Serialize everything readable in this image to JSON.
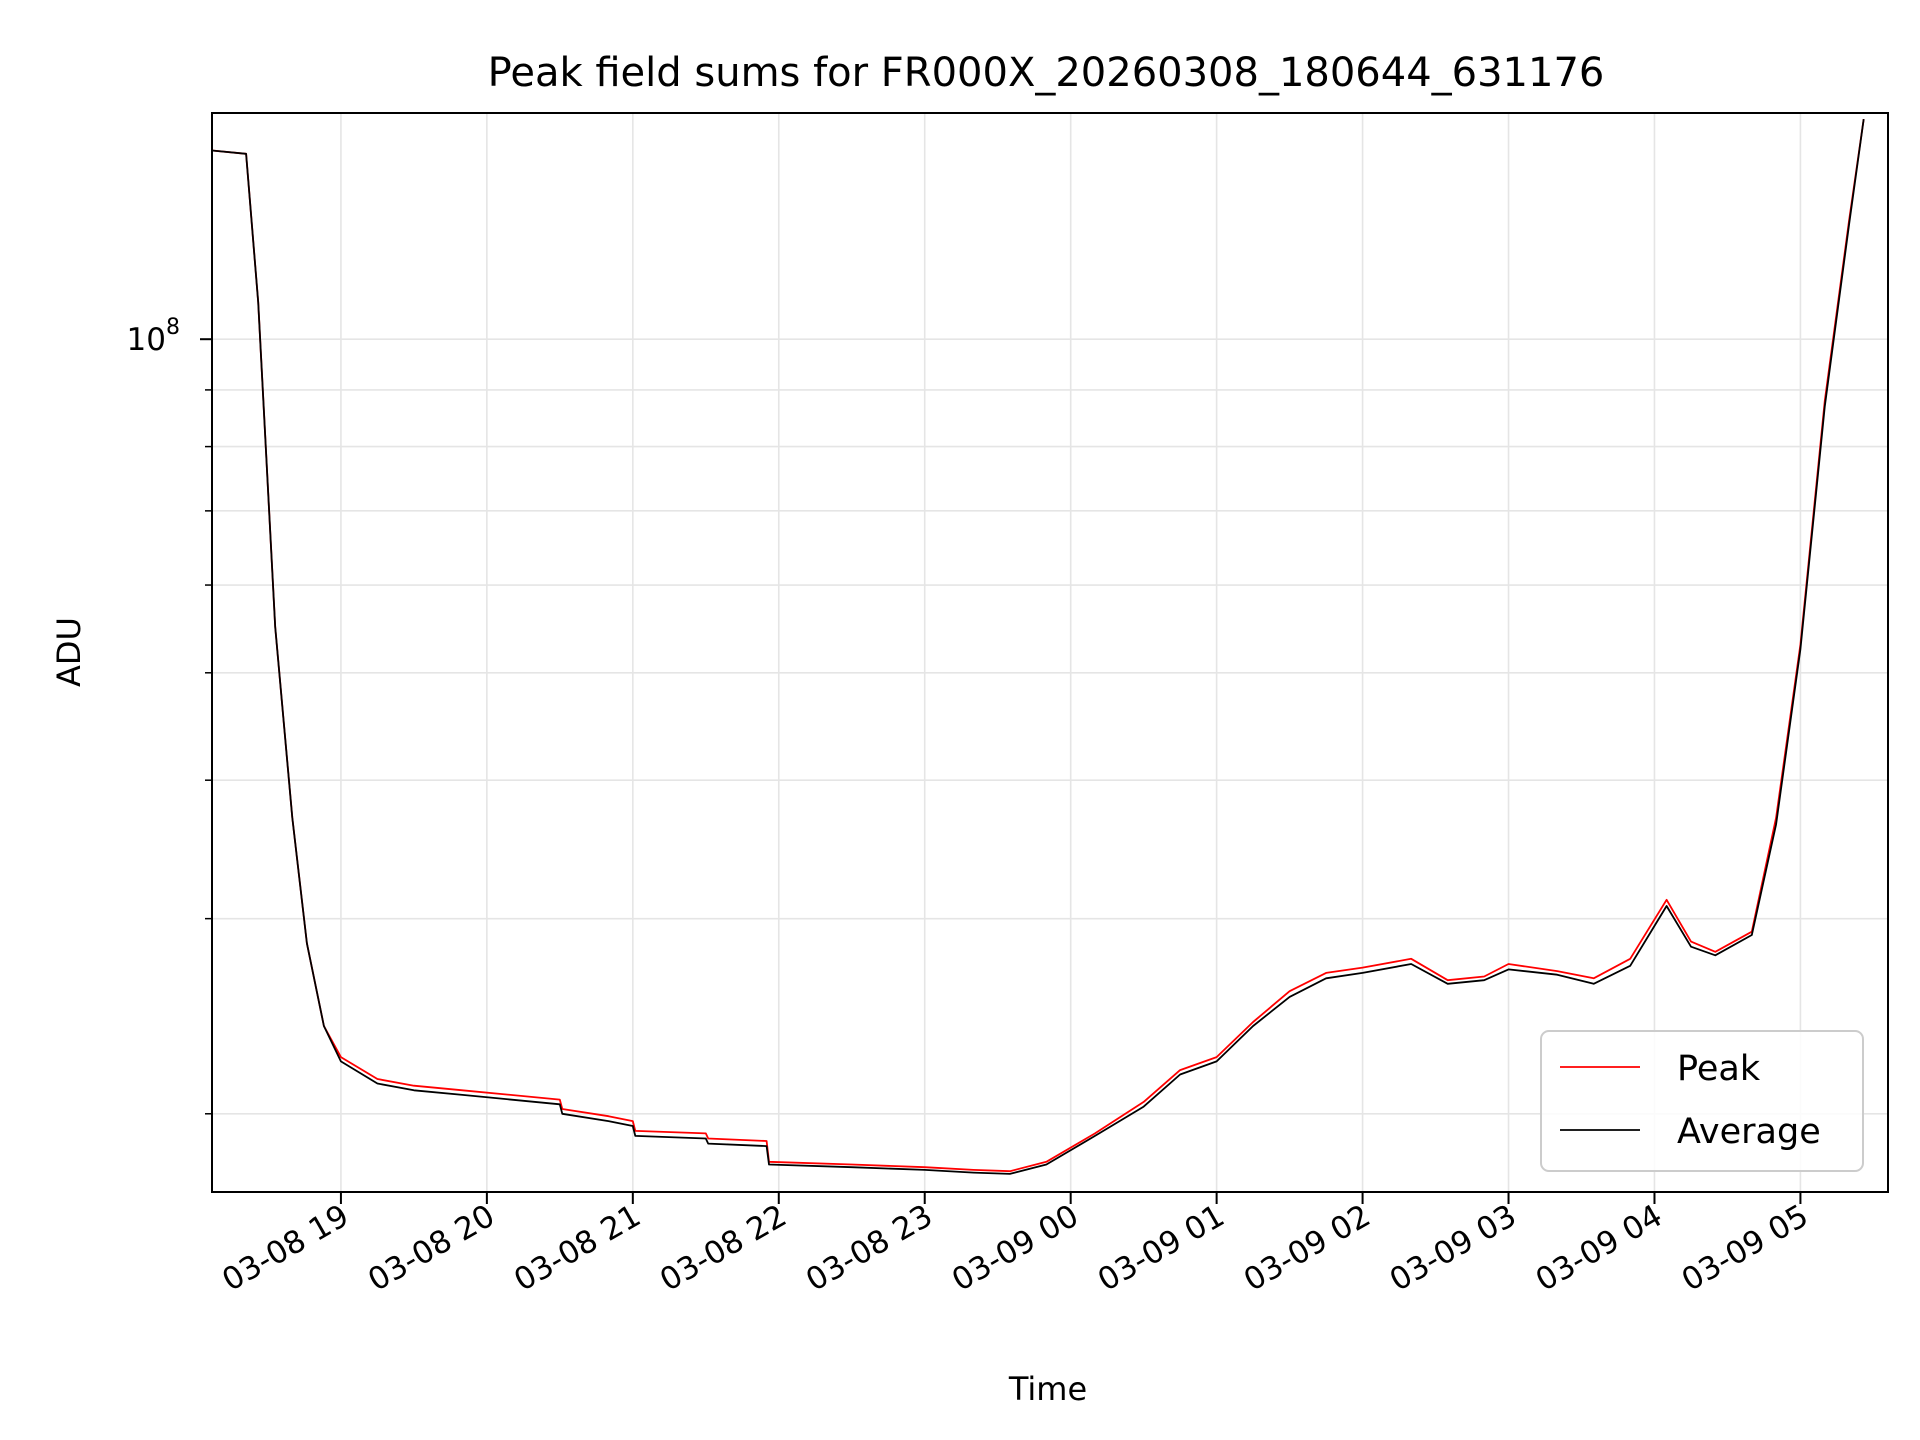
{
  "chart_data": {
    "type": "line",
    "title": "Peak field sums for FR000X_20260308_180644_631176",
    "xlabel": "Time",
    "ylabel": "ADU",
    "yscale": "log",
    "grid": true,
    "legend_position": "lower-right",
    "x_tick_labels": [
      "03-08 19",
      "03-08 20",
      "03-08 21",
      "03-08 22",
      "03-08 23",
      "03-09 00",
      "03-09 01",
      "03-09 02",
      "03-09 03",
      "03-09 04",
      "03-09 05"
    ],
    "y_tick_major": {
      "value": 100000000,
      "label_base": "10",
      "label_exp": "8"
    },
    "xlim": [
      "2026-03-08 18:07",
      "2026-03-09 05:36"
    ],
    "ylim": [
      17000000,
      160000000
    ],
    "series": [
      {
        "name": "Peak",
        "color": "#ff0000",
        "points": [
          [
            "2026-03-08 18:07",
            148000000.0
          ],
          [
            "2026-03-08 18:21",
            147000000.0
          ],
          [
            "2026-03-08 18:26",
            108000000.0
          ],
          [
            "2026-03-08 18:33",
            55000000.0
          ],
          [
            "2026-03-08 18:40",
            37000000.0
          ],
          [
            "2026-03-08 18:46",
            28500000.0
          ],
          [
            "2026-03-08 18:53",
            24000000.0
          ],
          [
            "2026-03-08 19:00",
            22500000.0
          ],
          [
            "2026-03-08 19:15",
            21500000.0
          ],
          [
            "2026-03-08 19:30",
            21200000.0
          ],
          [
            "2026-03-08 19:50",
            21000000.0
          ],
          [
            "2026-03-08 20:30",
            20600000.0
          ],
          [
            "2026-03-08 20:31",
            20200000.0
          ],
          [
            "2026-03-08 20:50",
            19900000.0
          ],
          [
            "2026-03-08 21:00",
            19700000.0
          ],
          [
            "2026-03-08 21:01",
            19300000.0
          ],
          [
            "2026-03-08 21:30",
            19200000.0
          ],
          [
            "2026-03-08 21:31",
            19000000.0
          ],
          [
            "2026-03-08 21:55",
            18900000.0
          ],
          [
            "2026-03-08 21:56",
            18100000.0
          ],
          [
            "2026-03-08 22:30",
            18000000.0
          ],
          [
            "2026-03-08 23:00",
            17900000.0
          ],
          [
            "2026-03-08 23:20",
            17800000.0
          ],
          [
            "2026-03-08 23:35",
            17750000.0
          ],
          [
            "2026-03-08 23:50",
            18100000.0
          ],
          [
            "2026-03-09 00:10",
            19200000.0
          ],
          [
            "2026-03-09 00:30",
            20500000.0
          ],
          [
            "2026-03-09 00:45",
            21900000.0
          ],
          [
            "2026-03-09 01:00",
            22500000.0
          ],
          [
            "2026-03-09 01:15",
            24200000.0
          ],
          [
            "2026-03-09 01:30",
            25800000.0
          ],
          [
            "2026-03-09 01:45",
            26800000.0
          ],
          [
            "2026-03-09 02:00",
            27100000.0
          ],
          [
            "2026-03-09 02:20",
            27600000.0
          ],
          [
            "2026-03-09 02:35",
            26400000.0
          ],
          [
            "2026-03-09 02:50",
            26600000.0
          ],
          [
            "2026-03-09 03:00",
            27300000.0
          ],
          [
            "2026-03-09 03:20",
            26900000.0
          ],
          [
            "2026-03-09 03:35",
            26500000.0
          ],
          [
            "2026-03-09 03:50",
            27600000.0
          ],
          [
            "2026-03-09 04:05",
            31200000.0
          ],
          [
            "2026-03-09 04:15",
            28600000.0
          ],
          [
            "2026-03-09 04:25",
            28000000.0
          ],
          [
            "2026-03-09 04:40",
            29200000.0
          ],
          [
            "2026-03-09 04:50",
            37000000.0
          ],
          [
            "2026-03-09 05:00",
            53000000.0
          ],
          [
            "2026-03-09 05:10",
            88000000.0
          ],
          [
            "2026-03-09 05:20",
            128000000.0
          ],
          [
            "2026-03-09 05:26",
            158000000.0
          ]
        ]
      },
      {
        "name": "Average",
        "color": "#000000",
        "points": [
          [
            "2026-03-08 18:07",
            148000000.0
          ],
          [
            "2026-03-08 18:21",
            147000000.0
          ],
          [
            "2026-03-08 18:26",
            108000000.0
          ],
          [
            "2026-03-08 18:33",
            55000000.0
          ],
          [
            "2026-03-08 18:40",
            37000000.0
          ],
          [
            "2026-03-08 18:46",
            28500000.0
          ],
          [
            "2026-03-08 18:53",
            24000000.0
          ],
          [
            "2026-03-08 19:00",
            22300000.0
          ],
          [
            "2026-03-08 19:15",
            21300000.0
          ],
          [
            "2026-03-08 19:30",
            21000000.0
          ],
          [
            "2026-03-08 19:50",
            20800000.0
          ],
          [
            "2026-03-08 20:30",
            20400000.0
          ],
          [
            "2026-03-08 20:31",
            20000000.0
          ],
          [
            "2026-03-08 20:50",
            19700000.0
          ],
          [
            "2026-03-08 21:00",
            19500000.0
          ],
          [
            "2026-03-08 21:01",
            19100000.0
          ],
          [
            "2026-03-08 21:30",
            19000000.0
          ],
          [
            "2026-03-08 21:31",
            18800000.0
          ],
          [
            "2026-03-08 21:55",
            18700000.0
          ],
          [
            "2026-03-08 21:56",
            18000000.0
          ],
          [
            "2026-03-08 22:30",
            17900000.0
          ],
          [
            "2026-03-08 23:00",
            17800000.0
          ],
          [
            "2026-03-08 23:20",
            17700000.0
          ],
          [
            "2026-03-08 23:35",
            17650000.0
          ],
          [
            "2026-03-08 23:50",
            18000000.0
          ],
          [
            "2026-03-09 00:10",
            19100000.0
          ],
          [
            "2026-03-09 00:30",
            20300000.0
          ],
          [
            "2026-03-09 00:45",
            21700000.0
          ],
          [
            "2026-03-09 01:00",
            22300000.0
          ],
          [
            "2026-03-09 01:15",
            24000000.0
          ],
          [
            "2026-03-09 01:30",
            25500000.0
          ],
          [
            "2026-03-09 01:45",
            26500000.0
          ],
          [
            "2026-03-09 02:00",
            26800000.0
          ],
          [
            "2026-03-09 02:20",
            27300000.0
          ],
          [
            "2026-03-09 02:35",
            26200000.0
          ],
          [
            "2026-03-09 02:50",
            26400000.0
          ],
          [
            "2026-03-09 03:00",
            27000000.0
          ],
          [
            "2026-03-09 03:20",
            26700000.0
          ],
          [
            "2026-03-09 03:35",
            26200000.0
          ],
          [
            "2026-03-09 03:50",
            27200000.0
          ],
          [
            "2026-03-09 04:05",
            30800000.0
          ],
          [
            "2026-03-09 04:15",
            28300000.0
          ],
          [
            "2026-03-09 04:25",
            27800000.0
          ],
          [
            "2026-03-09 04:40",
            29000000.0
          ],
          [
            "2026-03-09 04:50",
            36500000.0
          ],
          [
            "2026-03-09 05:00",
            52500000.0
          ],
          [
            "2026-03-09 05:10",
            87000000.0
          ],
          [
            "2026-03-09 05:20",
            127000000.0
          ],
          [
            "2026-03-09 05:26",
            158000000.0
          ]
        ]
      }
    ]
  }
}
